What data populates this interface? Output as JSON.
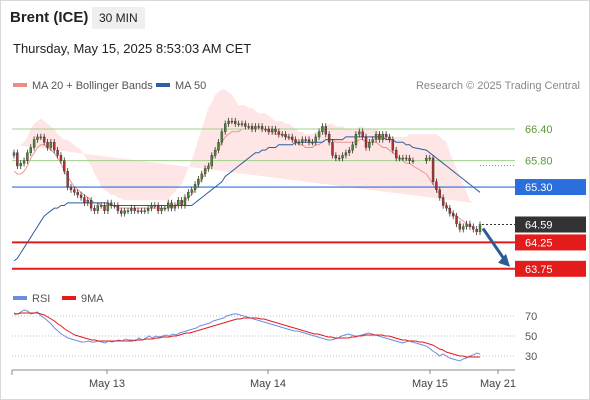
{
  "header": {
    "title": "Brent (ICE)",
    "timeframe": "30 MIN",
    "datetime": "Thursday, May 15, 2025 8:53:03 AM CET"
  },
  "legend": {
    "bollinger_label": "MA 20 + Bollinger Bands",
    "bollinger_color": "#f08a85",
    "ma50_label": "MA 50",
    "ma50_color": "#2f5f9e",
    "credit": "Research © 2025 Trading Central"
  },
  "rsi_legend": {
    "rsi_label": "RSI",
    "rsi_color": "#6b8fe0",
    "ma9_label": "9MA",
    "ma9_color": "#e31b1b"
  },
  "chart_data": [
    {
      "type": "candlestick",
      "y_range": [
        63.5,
        66.95
      ],
      "candle_colors": {
        "up": "#4a8a2a",
        "down": "#b03030"
      },
      "x_ticks": [
        "May 13",
        "May 14",
        "May 15",
        "May 21"
      ],
      "closes": [
        65.95,
        65.7,
        65.75,
        65.8,
        65.95,
        66.05,
        66.2,
        66.25,
        66.25,
        66.15,
        66.05,
        66.15,
        66.0,
        65.9,
        65.8,
        65.6,
        65.3,
        65.25,
        65.2,
        65.15,
        65.1,
        65.0,
        65.05,
        64.9,
        64.85,
        64.95,
        64.95,
        64.85,
        65.0,
        64.95,
        64.95,
        64.85,
        64.8,
        64.85,
        64.85,
        64.9,
        64.85,
        64.85,
        64.85,
        64.85,
        64.9,
        64.95,
        64.95,
        64.85,
        64.9,
        64.9,
        65.0,
        64.9,
        64.95,
        65.05,
        64.95,
        65.1,
        65.2,
        65.25,
        65.35,
        65.45,
        65.55,
        65.65,
        65.7,
        65.9,
        66.0,
        66.15,
        66.35,
        66.5,
        66.55,
        66.55,
        66.5,
        66.5,
        66.5,
        66.45,
        66.45,
        66.4,
        66.45,
        66.45,
        66.4,
        66.4,
        66.35,
        66.4,
        66.35,
        66.3,
        66.3,
        66.25,
        66.25,
        66.2,
        66.15,
        66.15,
        66.2,
        66.2,
        66.15,
        66.15,
        66.25,
        66.35,
        66.45,
        66.3,
        66.15,
        65.9,
        65.85,
        65.85,
        65.9,
        65.95,
        66.0,
        66.1,
        66.3,
        66.35,
        66.25,
        66.05,
        66.15,
        66.2,
        66.3,
        66.2,
        66.3,
        66.25,
        66.2,
        66.0,
        65.85,
        65.85,
        65.85,
        65.85,
        65.8,
        65.8,
        65.85,
        65.85,
        65.4,
        65.25,
        65.1,
        64.95,
        64.9,
        64.8,
        64.75,
        64.6,
        64.5,
        64.55,
        64.6,
        64.55,
        64.5,
        64.45,
        64.59
      ],
      "gap_after_index": 119,
      "bollinger_mid": [
        65.6,
        65.55,
        65.55,
        65.6,
        65.7,
        65.85,
        65.95,
        66.05,
        66.1,
        66.1,
        66.05,
        66.0,
        65.95,
        65.85,
        65.75,
        65.6,
        65.5,
        65.4,
        65.3,
        65.25,
        65.2,
        65.15,
        65.1,
        65.05,
        65.0,
        65.0,
        64.95,
        64.95,
        64.95,
        64.95,
        64.95,
        64.9,
        64.9,
        64.9,
        64.9,
        64.9,
        64.9,
        64.9,
        64.9,
        64.9,
        64.9,
        64.9,
        64.9,
        64.9,
        64.9,
        64.9,
        64.9,
        64.95,
        64.95,
        65.0,
        65.0,
        65.05,
        65.1,
        65.15,
        65.25,
        65.35,
        65.45,
        65.55,
        65.7,
        65.8,
        65.95,
        66.05,
        66.15,
        66.25,
        66.3,
        66.35,
        66.35,
        66.35,
        66.4,
        66.4,
        66.4,
        66.4,
        66.4,
        66.4,
        66.4,
        66.4,
        66.35,
        66.35,
        66.3,
        66.3,
        66.3,
        66.25,
        66.25,
        66.2,
        66.15,
        66.1,
        66.1,
        66.05,
        66.05,
        66.05,
        66.1,
        66.1,
        66.15,
        66.2,
        66.2,
        66.2,
        66.15,
        66.15,
        66.15,
        66.15,
        66.15,
        66.15,
        66.15,
        66.2,
        66.2,
        66.15,
        66.15,
        66.15,
        66.15,
        66.1,
        66.05,
        66.05,
        66.0,
        65.95,
        65.9,
        65.85,
        65.8,
        65.75,
        65.75,
        65.7,
        65.55,
        65.45,
        65.35,
        65.25,
        65.15,
        65.05,
        64.95,
        64.85,
        64.8,
        64.75,
        64.7,
        64.65,
        64.6,
        64.55,
        64.55
      ],
      "bollinger_width": [
        0.5,
        0.55,
        0.55,
        0.55,
        0.55,
        0.55,
        0.55,
        0.5,
        0.5,
        0.45,
        0.45,
        0.45,
        0.45,
        0.45,
        0.5,
        0.6,
        0.7,
        0.75,
        0.8,
        0.8,
        0.8,
        0.75,
        0.7,
        0.65,
        0.55,
        0.45,
        0.35,
        0.3,
        0.25,
        0.2,
        0.2,
        0.2,
        0.18,
        0.15,
        0.15,
        0.15,
        0.15,
        0.15,
        0.15,
        0.15,
        0.15,
        0.15,
        0.15,
        0.15,
        0.15,
        0.15,
        0.15,
        0.2,
        0.25,
        0.3,
        0.35,
        0.45,
        0.55,
        0.65,
        0.75,
        0.85,
        0.95,
        1.05,
        1.1,
        1.1,
        1.1,
        1.05,
        1.0,
        0.9,
        0.8,
        0.7,
        0.6,
        0.5,
        0.45,
        0.45,
        0.4,
        0.4,
        0.35,
        0.3,
        0.3,
        0.3,
        0.3,
        0.25,
        0.25,
        0.25,
        0.25,
        0.25,
        0.25,
        0.25,
        0.25,
        0.25,
        0.25,
        0.25,
        0.25,
        0.25,
        0.25,
        0.25,
        0.25,
        0.25,
        0.3,
        0.3,
        0.3,
        0.3,
        0.3,
        0.25,
        0.25,
        0.25,
        0.25,
        0.25,
        0.25,
        0.25,
        0.25,
        0.25,
        0.25,
        0.25,
        0.25,
        0.25,
        0.3,
        0.3,
        0.35,
        0.4,
        0.45,
        0.5,
        0.55,
        0.6,
        0.75,
        0.85,
        0.95,
        1.05,
        1.1,
        1.15,
        1.2,
        1.1,
        1.0,
        0.9,
        0.8,
        0.7,
        0.6,
        0.5,
        0.45
      ],
      "ma50": [
        63.9,
        63.95,
        64.05,
        64.15,
        64.25,
        64.35,
        64.45,
        64.55,
        64.65,
        64.75,
        64.8,
        64.85,
        64.9,
        64.9,
        64.95,
        64.95,
        65.0,
        65.0,
        65.0,
        65.0,
        65.0,
        65.0,
        65.0,
        65.0,
        65.0,
        65.0,
        65.0,
        65.0,
        65.0,
        64.95,
        64.95,
        64.95,
        64.95,
        64.95,
        64.95,
        64.95,
        64.95,
        64.95,
        64.95,
        64.95,
        64.95,
        64.95,
        64.95,
        64.95,
        64.95,
        64.95,
        64.95,
        64.95,
        64.95,
        64.95,
        64.95,
        64.95,
        64.95,
        64.95,
        65.0,
        65.05,
        65.1,
        65.15,
        65.2,
        65.25,
        65.3,
        65.35,
        65.4,
        65.5,
        65.55,
        65.6,
        65.65,
        65.7,
        65.75,
        65.8,
        65.85,
        65.9,
        65.95,
        65.95,
        66.0,
        66.0,
        66.05,
        66.05,
        66.05,
        66.1,
        66.1,
        66.1,
        66.1,
        66.1,
        66.15,
        66.15,
        66.15,
        66.15,
        66.15,
        66.15,
        66.15,
        66.15,
        66.15,
        66.2,
        66.2,
        66.2,
        66.2,
        66.2,
        66.2,
        66.25,
        66.25,
        66.25,
        66.25,
        66.25,
        66.25,
        66.25,
        66.25,
        66.25,
        66.25,
        66.25,
        66.25,
        66.2,
        66.2,
        66.2,
        66.15,
        66.15,
        66.15,
        66.1,
        66.1,
        66.05,
        66.0,
        65.95,
        65.9,
        65.85,
        65.8,
        65.75,
        65.7,
        65.65,
        65.6,
        65.55,
        65.5,
        65.45,
        65.4,
        65.35,
        65.3,
        65.25,
        65.2
      ],
      "levels": [
        {
          "label": "66.40",
          "value": 66.4,
          "kind": "green-line"
        },
        {
          "label": "65.80",
          "value": 65.8,
          "kind": "green-line"
        },
        {
          "label": "65.30",
          "value": 65.3,
          "kind": "blue-line"
        },
        {
          "label": "64.59",
          "value": 64.59,
          "kind": "last-price"
        },
        {
          "label": "64.25",
          "value": 64.25,
          "kind": "red-line"
        },
        {
          "label": "63.75",
          "value": 63.75,
          "kind": "red-line"
        }
      ],
      "arrow": {
        "from_value": 64.59,
        "to_value": 63.75,
        "color": "#2a5c9a"
      }
    },
    {
      "type": "line",
      "y_range": [
        20,
        80
      ],
      "y_ticks": [
        "70",
        "50",
        "30"
      ],
      "series": [
        {
          "name": "RSI",
          "values": [
            73,
            72,
            74,
            76,
            75,
            72,
            73,
            74,
            70,
            68,
            65,
            62,
            58,
            55,
            52,
            50,
            48,
            47,
            46,
            45,
            44,
            44,
            45,
            44,
            44,
            45,
            44,
            43,
            45,
            44,
            45,
            46,
            45,
            47,
            46,
            46,
            45,
            48,
            46,
            48,
            50,
            48,
            50,
            49,
            50,
            51,
            50,
            52,
            51,
            53,
            54,
            55,
            56,
            57,
            58,
            60,
            61,
            62,
            63,
            65,
            66,
            67,
            68,
            70,
            71,
            72,
            72,
            71,
            70,
            69,
            68,
            67,
            66,
            65,
            64,
            63,
            62,
            61,
            60,
            59,
            58,
            57,
            56,
            55,
            55,
            54,
            53,
            52,
            51,
            50,
            49,
            48,
            47,
            46,
            46,
            47,
            48,
            50,
            51,
            52,
            51,
            50,
            50,
            51,
            52,
            53,
            52,
            51,
            50,
            49,
            48,
            47,
            46,
            45,
            44,
            43,
            44,
            45,
            44,
            43,
            42,
            41,
            40,
            38,
            35,
            33,
            30,
            32,
            30,
            28,
            27,
            26,
            25,
            27,
            28,
            30,
            31,
            33,
            32
          ]
        },
        {
          "name": "9MA",
          "values": [
            72,
            72,
            73,
            73,
            73,
            73,
            73,
            73,
            72,
            71,
            69,
            67,
            65,
            62,
            60,
            57,
            55,
            53,
            51,
            50,
            49,
            48,
            47,
            46,
            46,
            45,
            45,
            45,
            45,
            45,
            45,
            45,
            45,
            45,
            45,
            45,
            46,
            46,
            46,
            47,
            47,
            47,
            48,
            48,
            49,
            49,
            49,
            50,
            50,
            51,
            52,
            53,
            53,
            54,
            55,
            56,
            57,
            58,
            59,
            60,
            61,
            62,
            63,
            64,
            65,
            66,
            67,
            67,
            68,
            68,
            68,
            68,
            68,
            67,
            67,
            66,
            65,
            64,
            63,
            62,
            61,
            60,
            59,
            58,
            57,
            56,
            55,
            54,
            53,
            52,
            52,
            51,
            50,
            49,
            49,
            48,
            48,
            48,
            48,
            48,
            49,
            49,
            50,
            50,
            51,
            51,
            51,
            51,
            51,
            51,
            50,
            50,
            49,
            48,
            47,
            46,
            46,
            45,
            45,
            45,
            44,
            44,
            43,
            42,
            41,
            39,
            37,
            36,
            34,
            33,
            32,
            31,
            30,
            30,
            29,
            29,
            29,
            29,
            29
          ]
        }
      ]
    }
  ]
}
